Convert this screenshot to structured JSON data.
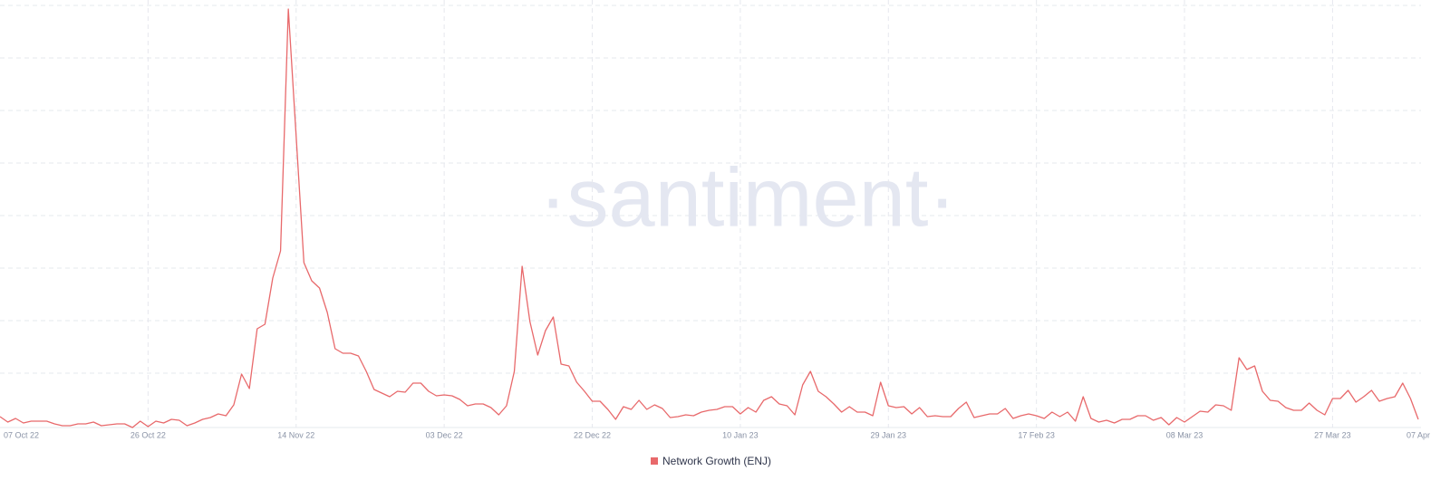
{
  "chart_data": {
    "type": "line",
    "watermark": "·santiment·",
    "categories": [
      "07 Oct 22",
      null,
      null,
      null,
      null,
      null,
      null,
      null,
      null,
      null,
      null,
      null,
      null,
      null,
      null,
      null,
      null,
      null,
      null,
      "26 Oct 22",
      null,
      null,
      null,
      null,
      null,
      null,
      null,
      null,
      null,
      null,
      null,
      null,
      null,
      null,
      null,
      null,
      null,
      null,
      "14 Nov 22",
      null,
      null,
      null,
      null,
      null,
      null,
      null,
      null,
      null,
      null,
      null,
      null,
      null,
      null,
      null,
      null,
      null,
      null,
      "03 Dec 22",
      null,
      null,
      null,
      null,
      null,
      null,
      null,
      null,
      null,
      null,
      null,
      null,
      null,
      null,
      null,
      null,
      null,
      null,
      "22 Dec 22",
      null,
      null,
      null,
      null,
      null,
      null,
      null,
      null,
      null,
      null,
      null,
      null,
      null,
      null,
      null,
      null,
      null,
      null,
      "10 Jan 23",
      null,
      null,
      null,
      null,
      null,
      null,
      null,
      null,
      null,
      null,
      null,
      null,
      null,
      null,
      null,
      null,
      null,
      null,
      "29 Jan 23",
      null,
      null,
      null,
      null,
      null,
      null,
      null,
      null,
      null,
      null,
      null,
      null,
      null,
      null,
      null,
      null,
      null,
      null,
      "17 Feb 23",
      null,
      null,
      null,
      null,
      null,
      null,
      null,
      null,
      null,
      null,
      null,
      null,
      null,
      null,
      null,
      null,
      null,
      null,
      "08 Mar 23",
      null,
      null,
      null,
      null,
      null,
      null,
      null,
      null,
      null,
      null,
      null,
      null,
      null,
      null,
      null,
      null,
      null,
      null,
      "27 Mar 23",
      null,
      null,
      null,
      null,
      null,
      null,
      null,
      null,
      null,
      null,
      "07 Apr"
    ],
    "series": [
      {
        "name": "Network Growth (ENJ)",
        "color": "#e8696b",
        "values": [
          15,
          9,
          13,
          8,
          10,
          10,
          10,
          7,
          5,
          5,
          7,
          7,
          9,
          5,
          6,
          7,
          7,
          3,
          10,
          4,
          10,
          8,
          12,
          11,
          5,
          8,
          12,
          14,
          18,
          16,
          28,
          62,
          46,
          112,
          117,
          168,
          198,
          465,
          325,
          185,
          165,
          157,
          130,
          90,
          85,
          85,
          82,
          65,
          45,
          41,
          37,
          43,
          42,
          52,
          52,
          43,
          38,
          39,
          38,
          34,
          27,
          29,
          29,
          25,
          17,
          27,
          65,
          181,
          120,
          83,
          110,
          125,
          73,
          71,
          53,
          43,
          32,
          32,
          23,
          12,
          26,
          23,
          33,
          23,
          28,
          24,
          14,
          15,
          17,
          16,
          20,
          22,
          23,
          26,
          26,
          18,
          25,
          20,
          33,
          37,
          29,
          27,
          17,
          50,
          65,
          43,
          37,
          29,
          20,
          26,
          20,
          20,
          16,
          53,
          27,
          25,
          26,
          18,
          25,
          15,
          16,
          15,
          15,
          24,
          31,
          14,
          16,
          18,
          18,
          24,
          13,
          16,
          18,
          16,
          13,
          20,
          15,
          20,
          10,
          37,
          13,
          9,
          11,
          8,
          12,
          12,
          16,
          16,
          11,
          14,
          6,
          14,
          9,
          15,
          21,
          20,
          28,
          27,
          22,
          80,
          67,
          71,
          43,
          33,
          32,
          25,
          22,
          22,
          30,
          22,
          17,
          35,
          35,
          44,
          31,
          37,
          44,
          32,
          35,
          37,
          52,
          35,
          12
        ]
      }
    ],
    "ylim": [
      0,
      475
    ]
  }
}
